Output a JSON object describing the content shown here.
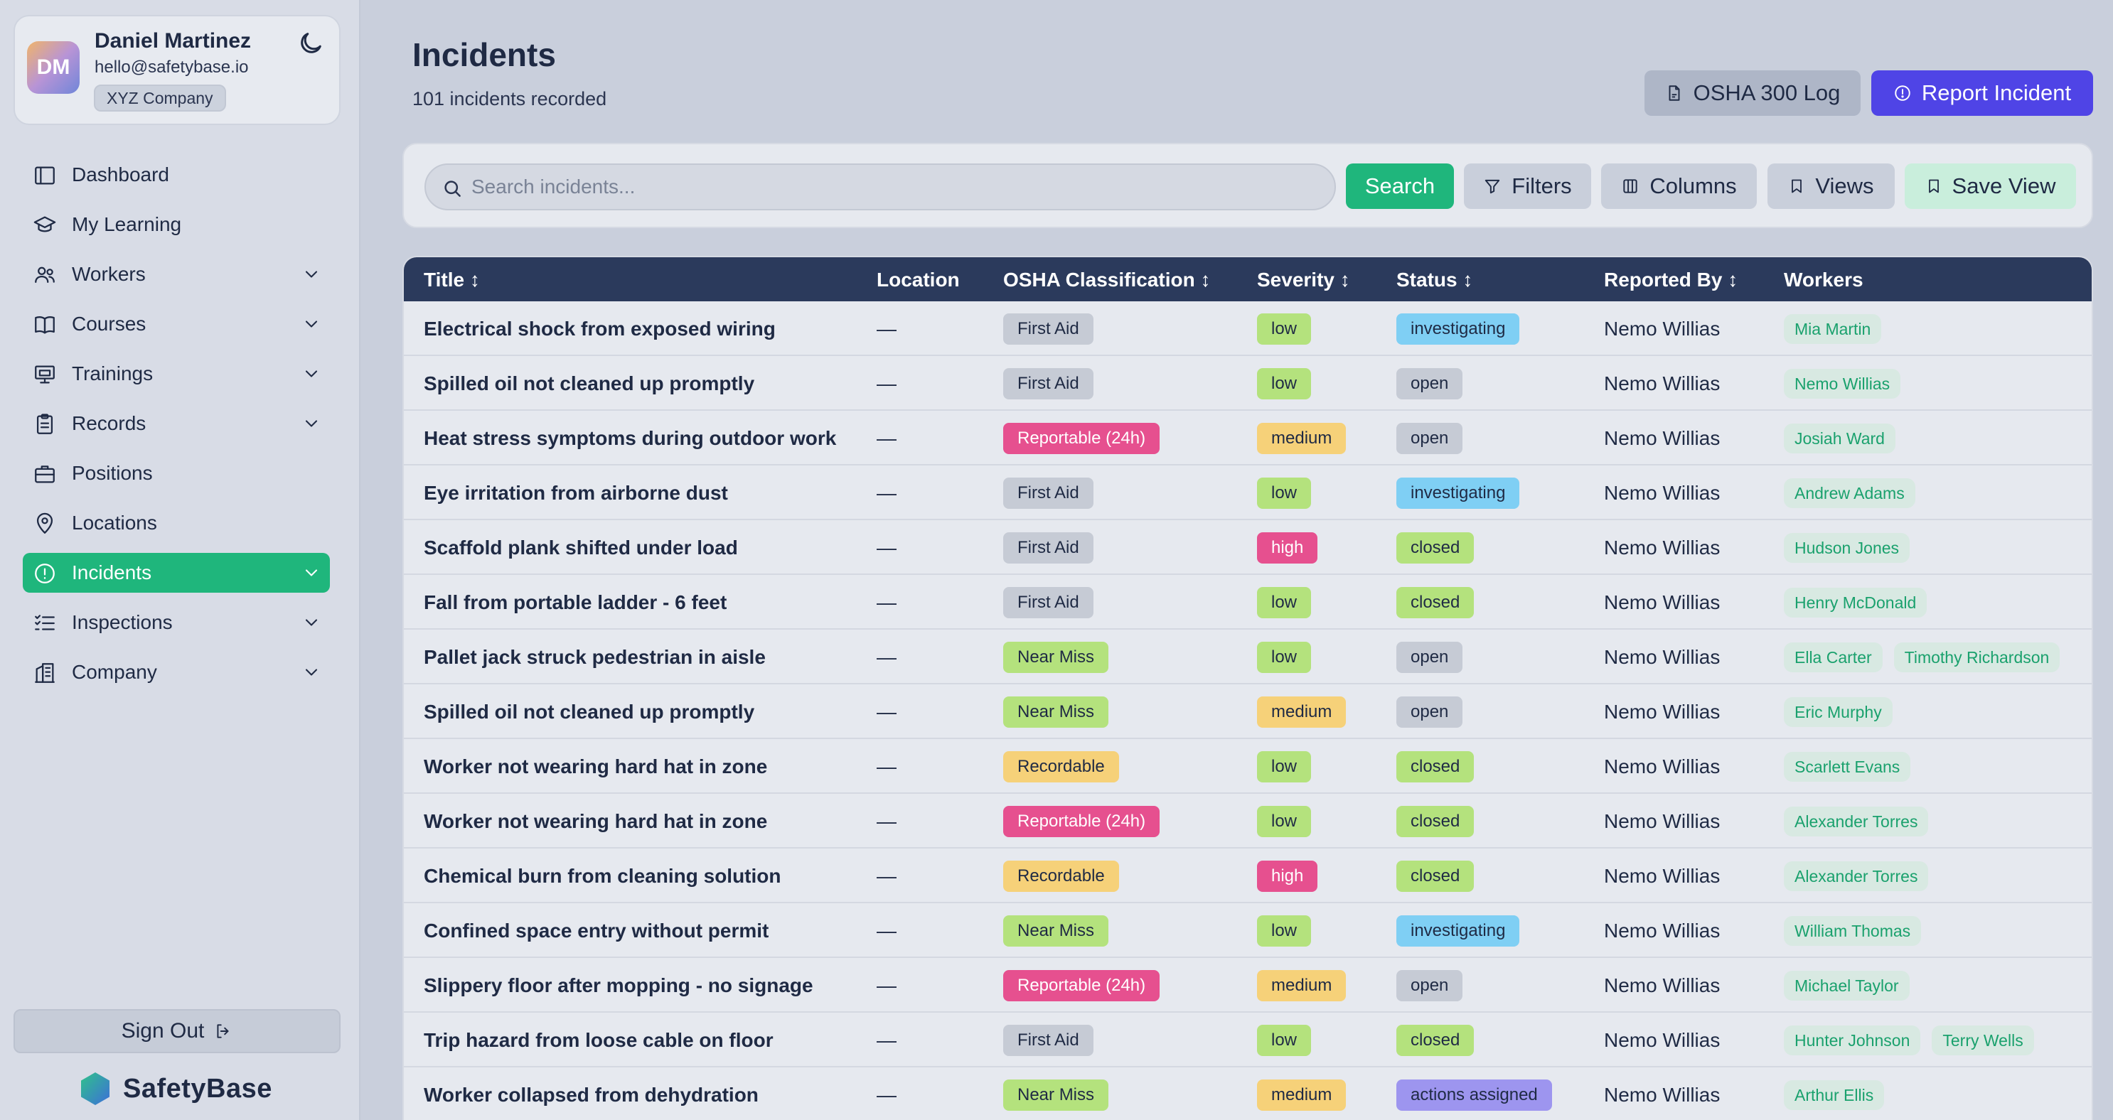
{
  "user": {
    "initials": "DM",
    "name": "Daniel Martinez",
    "email": "hello@safetybase.io",
    "company": "XYZ Company"
  },
  "nav": [
    {
      "label": "Dashboard",
      "icon": "dashboard-icon",
      "chevron": false,
      "active": false
    },
    {
      "label": "My Learning",
      "icon": "graduation-cap-icon",
      "chevron": false,
      "active": false
    },
    {
      "label": "Workers",
      "icon": "users-icon",
      "chevron": true,
      "active": false
    },
    {
      "label": "Courses",
      "icon": "book-icon",
      "chevron": true,
      "active": false
    },
    {
      "label": "Trainings",
      "icon": "presentation-icon",
      "chevron": true,
      "active": false
    },
    {
      "label": "Records",
      "icon": "clipboard-icon",
      "chevron": true,
      "active": false
    },
    {
      "label": "Positions",
      "icon": "briefcase-icon",
      "chevron": false,
      "active": false
    },
    {
      "label": "Locations",
      "icon": "map-pin-icon",
      "chevron": false,
      "active": false
    },
    {
      "label": "Incidents",
      "icon": "alert-circle-icon",
      "chevron": true,
      "active": true
    },
    {
      "label": "Inspections",
      "icon": "checklist-icon",
      "chevron": true,
      "active": false
    },
    {
      "label": "Company",
      "icon": "building-icon",
      "chevron": true,
      "active": false
    }
  ],
  "sidebar": {
    "sign_out": "Sign Out",
    "brand": "SafetyBase"
  },
  "page": {
    "title": "Incidents",
    "subtitle": "101 incidents recorded"
  },
  "actions": {
    "osha_log": "OSHA 300 Log",
    "report": "Report Incident"
  },
  "toolbar": {
    "search_placeholder": "Search incidents...",
    "search": "Search",
    "filters": "Filters",
    "columns": "Columns",
    "views": "Views",
    "save_view": "Save View"
  },
  "table": {
    "headers": {
      "title": "Title ↕",
      "location": "Location",
      "osha": "OSHA Classification ↕",
      "severity": "Severity ↕",
      "status": "Status ↕",
      "reported_by": "Reported By ↕",
      "workers": "Workers"
    },
    "rows": [
      {
        "title": "Electrical shock from exposed wiring",
        "location": "—",
        "osha": "First Aid",
        "severity": "low",
        "status": "investigating",
        "reported_by": "Nemo Willias",
        "workers": [
          "Mia Martin"
        ]
      },
      {
        "title": "Spilled oil not cleaned up promptly",
        "location": "—",
        "osha": "First Aid",
        "severity": "low",
        "status": "open",
        "reported_by": "Nemo Willias",
        "workers": [
          "Nemo Willias"
        ]
      },
      {
        "title": "Heat stress symptoms during outdoor work",
        "location": "—",
        "osha": "Reportable (24h)",
        "severity": "medium",
        "status": "open",
        "reported_by": "Nemo Willias",
        "workers": [
          "Josiah Ward"
        ]
      },
      {
        "title": "Eye irritation from airborne dust",
        "location": "—",
        "osha": "First Aid",
        "severity": "low",
        "status": "investigating",
        "reported_by": "Nemo Willias",
        "workers": [
          "Andrew Adams"
        ]
      },
      {
        "title": "Scaffold plank shifted under load",
        "location": "—",
        "osha": "First Aid",
        "severity": "high",
        "status": "closed",
        "reported_by": "Nemo Willias",
        "workers": [
          "Hudson Jones"
        ]
      },
      {
        "title": "Fall from portable ladder - 6 feet",
        "location": "—",
        "osha": "First Aid",
        "severity": "low",
        "status": "closed",
        "reported_by": "Nemo Willias",
        "workers": [
          "Henry McDonald"
        ]
      },
      {
        "title": "Pallet jack struck pedestrian in aisle",
        "location": "—",
        "osha": "Near Miss",
        "severity": "low",
        "status": "open",
        "reported_by": "Nemo Willias",
        "workers": [
          "Ella Carter",
          "Timothy Richardson"
        ]
      },
      {
        "title": "Spilled oil not cleaned up promptly",
        "location": "—",
        "osha": "Near Miss",
        "severity": "medium",
        "status": "open",
        "reported_by": "Nemo Willias",
        "workers": [
          "Eric Murphy"
        ]
      },
      {
        "title": "Worker not wearing hard hat in zone",
        "location": "—",
        "osha": "Recordable",
        "severity": "low",
        "status": "closed",
        "reported_by": "Nemo Willias",
        "workers": [
          "Scarlett Evans"
        ]
      },
      {
        "title": "Worker not wearing hard hat in zone",
        "location": "—",
        "osha": "Reportable (24h)",
        "severity": "low",
        "status": "closed",
        "reported_by": "Nemo Willias",
        "workers": [
          "Alexander Torres"
        ]
      },
      {
        "title": "Chemical burn from cleaning solution",
        "location": "—",
        "osha": "Recordable",
        "severity": "high",
        "status": "closed",
        "reported_by": "Nemo Willias",
        "workers": [
          "Alexander Torres"
        ]
      },
      {
        "title": "Confined space entry without permit",
        "location": "—",
        "osha": "Near Miss",
        "severity": "low",
        "status": "investigating",
        "reported_by": "Nemo Willias",
        "workers": [
          "William Thomas"
        ]
      },
      {
        "title": "Slippery floor after mopping - no signage",
        "location": "—",
        "osha": "Reportable (24h)",
        "severity": "medium",
        "status": "open",
        "reported_by": "Nemo Willias",
        "workers": [
          "Michael Taylor"
        ]
      },
      {
        "title": "Trip hazard from loose cable on floor",
        "location": "—",
        "osha": "First Aid",
        "severity": "low",
        "status": "closed",
        "reported_by": "Nemo Willias",
        "workers": [
          "Hunter Johnson",
          "Terry Wells"
        ]
      },
      {
        "title": "Worker collapsed from dehydration",
        "location": "—",
        "osha": "Near Miss",
        "severity": "medium",
        "status": "actions assigned",
        "reported_by": "Nemo Willias",
        "workers": [
          "Arthur Ellis"
        ]
      }
    ]
  },
  "colors": {
    "accent_green": "#1fb67c",
    "primary_indigo": "#4f44e6",
    "table_header": "#2b3a5c",
    "osha": {
      "First Aid": {
        "bg": "#c6cbd5",
        "fg": "#1f2a44"
      },
      "Reportable (24h)": {
        "bg": "#e6508f",
        "fg": "#ffffff"
      },
      "Near Miss": {
        "bg": "#b4e27d",
        "fg": "#1f2a44"
      },
      "Recordable": {
        "bg": "#f6d179",
        "fg": "#1f2a44"
      }
    },
    "severity": {
      "low": {
        "bg": "#b4e27d",
        "fg": "#1f2a44"
      },
      "medium": {
        "bg": "#f6d179",
        "fg": "#1f2a44"
      },
      "high": {
        "bg": "#e6508f",
        "fg": "#ffffff"
      }
    },
    "status": {
      "investigating": {
        "bg": "#7fcff4",
        "fg": "#1f2a44"
      },
      "open": {
        "bg": "#c6cbd5",
        "fg": "#1f2a44"
      },
      "closed": {
        "bg": "#b4e27d",
        "fg": "#1f2a44"
      },
      "actions assigned": {
        "bg": "#9d95ef",
        "fg": "#1f2a44"
      }
    }
  }
}
